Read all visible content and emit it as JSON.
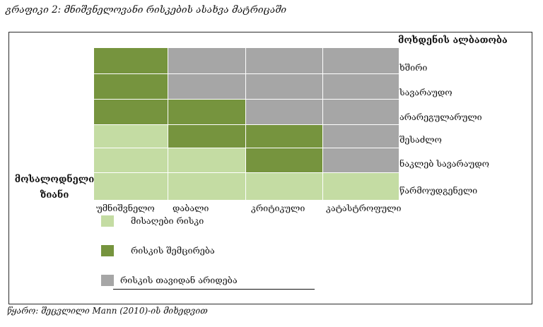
{
  "caption": "გრაფიკი 2: მნიშვნელოვანი რისკების ასახვა მატრიცაში",
  "source": "წყარო: შეცვლილი Mann (2010)-ის მიხედვით",
  "matrix": {
    "y_axis_title": "მოხდენის ალბათობა",
    "x_axis_title": "მოსალოდნელი ზიანი",
    "rows": [
      "ხშირი",
      "სავარაუდო",
      "არარეგულარული",
      "შესაძლო",
      "ნაკლებ სავარაუდო",
      "წარმოუდგენელი"
    ],
    "columns": [
      "უმნიშვნელო",
      "დაბალი",
      "კრიტიკული",
      "კატასტროფული"
    ],
    "cells": [
      [
        "mitigate",
        "avoid",
        "avoid",
        "avoid"
      ],
      [
        "mitigate",
        "avoid",
        "avoid",
        "avoid"
      ],
      [
        "mitigate",
        "mitigate",
        "avoid",
        "avoid"
      ],
      [
        "accept",
        "mitigate",
        "mitigate",
        "avoid"
      ],
      [
        "accept",
        "accept",
        "mitigate",
        "avoid"
      ],
      [
        "accept",
        "accept",
        "accept",
        "accept"
      ]
    ]
  },
  "legend": [
    {
      "key": "accept",
      "label": "მისაღები რისკი",
      "color": "#c4dca3"
    },
    {
      "key": "mitigate",
      "label": "რისკის შემცირება",
      "color": "#76943e"
    },
    {
      "key": "avoid",
      "label": "რისკის თავიდან არიდება",
      "color": "#a6a6a6"
    }
  ]
}
